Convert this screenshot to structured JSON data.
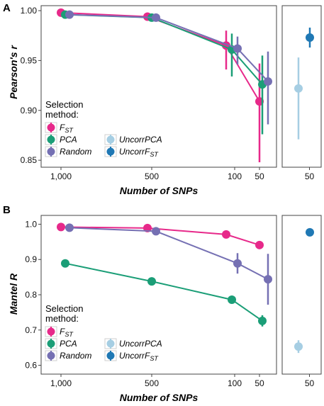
{
  "chart_data": [
    {
      "panel": "A",
      "type": "line",
      "ylabel": "Pearson's r",
      "xlabel": "Number of SNPs",
      "categories": [
        "1,000",
        "500",
        "100",
        "50"
      ],
      "yticks": [
        "0.85",
        "0.90",
        "0.95",
        "1.00"
      ],
      "ylim": [
        0.843,
        1.005
      ],
      "side_categories": [
        "50"
      ],
      "series": [
        {
          "name": "FST",
          "color": "#e7298a",
          "values": [
            0.998,
            0.994,
            0.965,
            0.909
          ],
          "err_lo": [
            0.997,
            0.992,
            0.941,
            0.848
          ],
          "err_hi": [
            0.999,
            0.996,
            0.98,
            0.947
          ]
        },
        {
          "name": "PCA",
          "color": "#1b9e77",
          "values": [
            0.996,
            0.993,
            0.961,
            0.926
          ],
          "err_lo": [
            0.995,
            0.99,
            0.934,
            0.876
          ],
          "err_hi": [
            0.997,
            0.995,
            0.977,
            0.955
          ]
        },
        {
          "name": "Random",
          "color": "#7570b3",
          "values": [
            0.996,
            0.993,
            0.962,
            0.929
          ],
          "err_lo": [
            0.995,
            0.991,
            0.946,
            0.886
          ],
          "err_hi": [
            0.997,
            0.995,
            0.974,
            0.959
          ]
        }
      ],
      "side_series": [
        {
          "name": "UncorrPCA",
          "color": "#a6cee3",
          "value": 0.922,
          "err_lo": 0.871,
          "err_hi": 0.953
        },
        {
          "name": "UncorrFST",
          "color": "#1f78b4",
          "value": 0.973,
          "err_lo": 0.963,
          "err_hi": 0.983
        }
      ],
      "legend": {
        "title_line1": "Selection",
        "title_line2": "method:",
        "items": [
          {
            "base": "F",
            "sub": "ST",
            "color": "#e7298a"
          },
          {
            "base": "PCA",
            "sub": "",
            "color": "#1b9e77"
          },
          {
            "base": "Random",
            "sub": "",
            "color": "#7570b3"
          },
          {
            "base": "UncorrPCA",
            "sub": "",
            "color": "#a6cee3"
          },
          {
            "base": "UncorrF",
            "sub": "ST",
            "color": "#1f78b4"
          }
        ]
      }
    },
    {
      "panel": "B",
      "type": "line",
      "ylabel": "Mantel R",
      "xlabel": "Number of SNPs",
      "categories": [
        "1,000",
        "500",
        "100",
        "50"
      ],
      "yticks": [
        "0.6",
        "0.7",
        "0.8",
        "0.9",
        "1.0"
      ],
      "ylim": [
        0.575,
        1.025
      ],
      "side_categories": [
        "50"
      ],
      "series": [
        {
          "name": "FST",
          "color": "#e7298a",
          "values": [
            0.992,
            0.989,
            0.971,
            0.941
          ],
          "err_lo": [
            0.991,
            0.987,
            0.967,
            0.935
          ],
          "err_hi": [
            0.993,
            0.991,
            0.975,
            0.947
          ]
        },
        {
          "name": "PCA",
          "color": "#1b9e77",
          "values": [
            0.889,
            0.838,
            0.786,
            0.726
          ],
          "err_lo": [
            0.887,
            0.835,
            0.781,
            0.71
          ],
          "err_hi": [
            0.891,
            0.841,
            0.791,
            0.742
          ]
        },
        {
          "name": "Random",
          "color": "#7570b3",
          "values": [
            0.99,
            0.98,
            0.889,
            0.844
          ],
          "err_lo": [
            0.988,
            0.976,
            0.86,
            0.772
          ],
          "err_hi": [
            0.992,
            0.984,
            0.918,
            0.916
          ]
        }
      ],
      "side_series": [
        {
          "name": "UncorrPCA",
          "color": "#a6cee3",
          "value": 0.653,
          "err_lo": 0.635,
          "err_hi": 0.671
        },
        {
          "name": "UncorrFST",
          "color": "#1f78b4",
          "value": 0.977,
          "err_lo": 0.975,
          "err_hi": 0.979
        }
      ],
      "legend": {
        "title_line1": "Selection",
        "title_line2": "method:",
        "items": [
          {
            "base": "F",
            "sub": "ST",
            "color": "#e7298a"
          },
          {
            "base": "PCA",
            "sub": "",
            "color": "#1b9e77"
          },
          {
            "base": "Random",
            "sub": "",
            "color": "#7570b3"
          },
          {
            "base": "UncorrPCA",
            "sub": "",
            "color": "#a6cee3"
          },
          {
            "base": "UncorrF",
            "sub": "ST",
            "color": "#1f78b4"
          }
        ]
      }
    }
  ]
}
